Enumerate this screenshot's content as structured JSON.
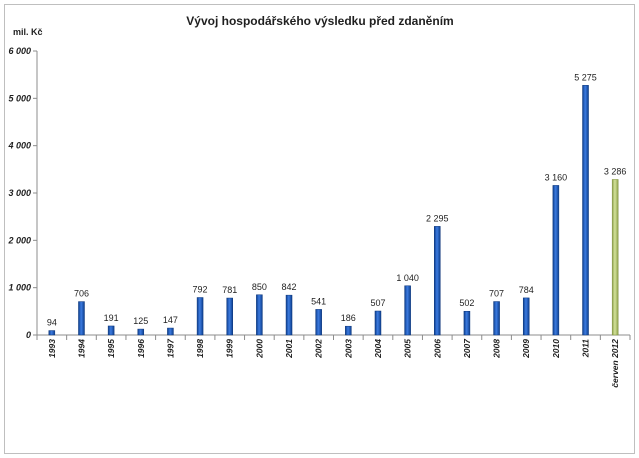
{
  "chart_data": {
    "type": "bar",
    "title": "Vývoj hospodářského výsledku před zdaněním",
    "unit_label": "mil. Kč",
    "ylim": [
      0,
      6000
    ],
    "yticks": [
      0,
      1000,
      2000,
      3000,
      4000,
      5000,
      6000
    ],
    "ytick_labels": [
      "0",
      "1 000",
      "2 000",
      "3 000",
      "4 000",
      "5 000",
      "6 000"
    ],
    "grid": false,
    "categories": [
      "1993",
      "1994",
      "1995",
      "1996",
      "1997",
      "1998",
      "1999",
      "2000",
      "2001",
      "2002",
      "2003",
      "2004",
      "2005",
      "2006",
      "2007",
      "2008",
      "2009",
      "2010",
      "2011",
      "červen 2012"
    ],
    "values": [
      94,
      706,
      191,
      125,
      147,
      792,
      781,
      850,
      842,
      541,
      186,
      507,
      1040,
      2295,
      502,
      707,
      784,
      3160,
      5275,
      3286
    ],
    "value_labels": [
      "94",
      "706",
      "191",
      "125",
      "147",
      "792",
      "781",
      "850",
      "842",
      "541",
      "186",
      "507",
      "1 040",
      "2 295",
      "502",
      "707",
      "784",
      "3 160",
      "5 275",
      "3 286"
    ],
    "bar_colors": [
      "#1f5fbf",
      "#1f5fbf",
      "#1f5fbf",
      "#1f5fbf",
      "#1f5fbf",
      "#1f5fbf",
      "#1f5fbf",
      "#1f5fbf",
      "#1f5fbf",
      "#1f5fbf",
      "#1f5fbf",
      "#1f5fbf",
      "#1f5fbf",
      "#1f5fbf",
      "#1f5fbf",
      "#1f5fbf",
      "#1f5fbf",
      "#1f5fbf",
      "#1f5fbf",
      "#b5c77a"
    ]
  }
}
